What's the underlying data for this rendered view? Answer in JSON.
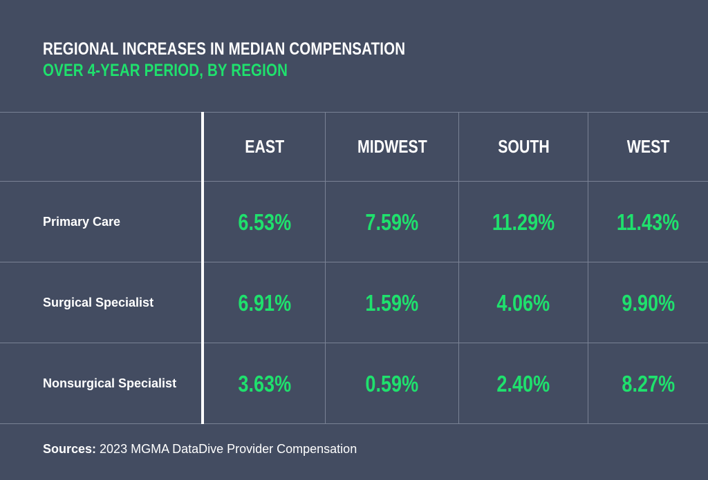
{
  "chart_data": {
    "type": "table",
    "title": "REGIONAL INCREASES IN MEDIAN COMPENSATION",
    "subtitle": "OVER 4-YEAR PERIOD, BY REGION",
    "columns": [
      "EAST",
      "MIDWEST",
      "SOUTH",
      "WEST"
    ],
    "rows": [
      {
        "label": "Primary Care",
        "values": [
          "6.53%",
          "7.59%",
          "11.29%",
          "11.43%"
        ]
      },
      {
        "label": "Surgical Specialist",
        "values": [
          "6.91%",
          "1.59%",
          "4.06%",
          "9.90%"
        ]
      },
      {
        "label": "Nonsurgical Specialist",
        "values": [
          "3.63%",
          "0.59%",
          "2.40%",
          "8.27%"
        ]
      }
    ]
  },
  "sources": {
    "label": "Sources:",
    "text": " 2023 MGMA DataDive Provider Compensation"
  },
  "colors": {
    "background": "#434c61",
    "accent": "#1fe16d",
    "text": "#ffffff"
  }
}
